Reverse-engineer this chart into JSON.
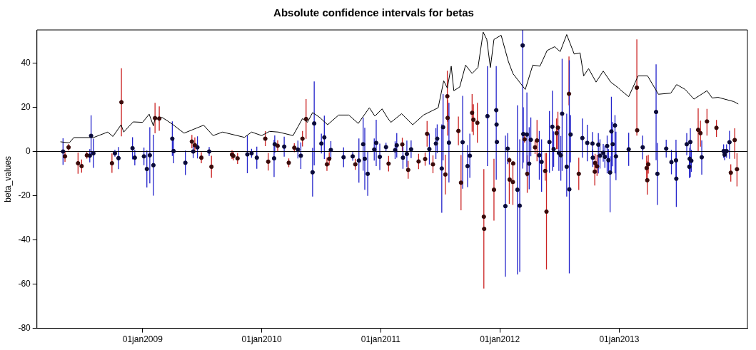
{
  "chart_data": {
    "type": "scatter",
    "title": "Absolute confidence intervals for betas",
    "ylabel": "beta_values",
    "xlim": [
      "2008-02-12",
      "2014-01-29"
    ],
    "ylim": [
      -80,
      55
    ],
    "xticks": [
      {
        "value": "2009-01-01",
        "label": "01jan2009"
      },
      {
        "value": "2010-01-01",
        "label": "01jan2010"
      },
      {
        "value": "2011-01-01",
        "label": "01jan2011"
      },
      {
        "value": "2012-01-01",
        "label": "01jan2012"
      },
      {
        "value": "2013-01-01",
        "label": "01jan2013"
      }
    ],
    "yticks": [
      -80,
      -60,
      -40,
      -20,
      0,
      20,
      40
    ],
    "grid": false,
    "legend": false,
    "ref_lines": [
      {
        "axis": "y",
        "value": 0,
        "color": "#000000"
      }
    ],
    "series": [
      {
        "type": "line",
        "color": "#000000",
        "x": [
          "2008-04-24",
          "2008-05-21",
          "2008-06-04",
          "2008-08-03",
          "2008-09-16",
          "2008-10-02",
          "2008-10-27",
          "2008-11-04",
          "2008-12-03",
          "2009-01-01",
          "2009-01-21",
          "2009-02-03",
          "2009-02-08",
          "2009-03-02",
          "2009-03-30",
          "2009-05-08",
          "2009-07-07",
          "2009-08-05",
          "2009-09-03",
          "2009-11-09",
          "2009-12-01",
          "2010-01-01",
          "2010-01-25",
          "2010-02-21",
          "2010-04-07",
          "2010-05-06",
          "2010-05-21",
          "2010-06-06",
          "2010-06-28",
          "2010-07-22",
          "2010-08-25",
          "2010-09-25",
          "2010-10-24",
          "2010-11-27",
          "2010-12-14",
          "2011-01-05",
          "2011-01-21",
          "2011-02-01",
          "2011-03-06",
          "2011-04-09",
          "2011-05-12",
          "2011-06-26",
          "2011-07-13",
          "2011-07-24",
          "2011-08-05",
          "2011-08-13",
          "2011-08-31",
          "2011-09-18",
          "2011-10-08",
          "2011-10-26",
          "2011-11-11",
          "2011-11-22",
          "2011-12-03",
          "2011-12-14",
          "2012-01-05",
          "2012-01-27",
          "2012-02-10",
          "2012-03-04",
          "2012-03-19",
          "2012-04-11",
          "2012-05-03",
          "2012-05-25",
          "2012-06-17",
          "2012-07-04",
          "2012-07-24",
          "2012-08-16",
          "2012-09-03",
          "2012-09-14",
          "2012-09-29",
          "2012-10-22",
          "2012-11-13",
          "2012-12-06",
          "2012-12-30",
          "2013-01-03",
          "2013-01-30",
          "2013-02-28",
          "2013-03-29",
          "2013-05-01",
          "2013-06-08",
          "2013-06-26",
          "2013-07-22",
          "2013-08-18",
          "2013-09-27",
          "2013-10-13",
          "2013-10-31",
          "2013-12-18",
          "2014-01-01"
        ],
        "values": [
          4.4,
          3.9,
          6.3,
          6.3,
          8.8,
          6.8,
          12.1,
          8.8,
          13.4,
          13.2,
          16.9,
          11.6,
          14.9,
          15.4,
          12.7,
          8.3,
          11.9,
          7.2,
          8.8,
          6.4,
          8.8,
          7.2,
          9.1,
          8.8,
          7.2,
          14.9,
          13.2,
          17.6,
          15.4,
          12.1,
          16.5,
          16.5,
          12.7,
          19.8,
          16.0,
          19.3,
          15.4,
          13.2,
          17.1,
          12.1,
          16.5,
          19.8,
          32.0,
          28.7,
          38.6,
          27.5,
          29.2,
          39.1,
          35.3,
          38.0,
          54,
          50.7,
          38.0,
          50.7,
          52.6,
          40.8,
          35.3,
          30.9,
          28.1,
          39.1,
          38.6,
          45.7,
          47.4,
          45.2,
          52.9,
          44.1,
          44.6,
          34.2,
          37.5,
          31.4,
          36.4,
          31.4,
          28.7,
          28.1,
          24.8,
          34.2,
          34.2,
          25.9,
          26.4,
          30.3,
          28.1,
          23.7,
          27.5,
          24.2,
          24.5,
          22.6,
          21.5
        ]
      },
      {
        "color": "#3a0a0a",
        "marker": "circle",
        "x": [
          "2008-05-08",
          "2008-05-19",
          "2008-06-17",
          "2008-06-28",
          "2008-07-14",
          "2008-09-29",
          "2008-10-28",
          "2009-02-08",
          "2009-02-21",
          "2009-06-01",
          "2009-06-10",
          "2009-06-30",
          "2009-07-31",
          "2009-10-02",
          "2009-10-06",
          "2009-10-19",
          "2010-01-12",
          "2010-01-21",
          "2010-02-19",
          "2010-03-25",
          "2010-04-11",
          "2010-05-06",
          "2010-05-17",
          "2010-07-20",
          "2010-07-27",
          "2010-10-15",
          "2011-01-25",
          "2011-03-08",
          "2011-03-26",
          "2011-04-27",
          "2011-05-17",
          "2011-05-23",
          "2011-06-10",
          "2011-07-18",
          "2011-07-24",
          "2011-07-25",
          "2011-08-27",
          "2011-09-04",
          "2011-10-08",
          "2011-10-12",
          "2011-10-24",
          "2011-11-13",
          "2011-11-14",
          "2011-12-14",
          "2012-01-30",
          "2012-01-31",
          "2012-02-10",
          "2012-02-11",
          "2012-03-17",
          "2012-03-25",
          "2012-04-18",
          "2012-04-24",
          "2012-05-19",
          "2012-05-23",
          "2012-06-23",
          "2012-06-27",
          "2012-07-31",
          "2012-08-30",
          "2012-10-18",
          "2012-10-19",
          "2012-10-25",
          "2013-02-24",
          "2013-02-25",
          "2013-03-26",
          "2013-03-28",
          "2013-03-31",
          "2013-08-31",
          "2013-09-07",
          "2013-09-27",
          "2013-10-26",
          "2013-12-09",
          "2013-12-21",
          "2013-12-28"
        ],
        "values": [
          -2.2,
          1.9,
          -5.3,
          -6.6,
          -1.7,
          -5.3,
          22.3,
          15.1,
          14.9,
          4.5,
          2.9,
          -2.8,
          -6.9,
          -1.4,
          -2.0,
          -3.1,
          5.8,
          -4.6,
          2.6,
          -5.1,
          1.7,
          5.8,
          14.7,
          -5.8,
          -3.3,
          -5.8,
          -5.5,
          3.2,
          -8.3,
          -4.5,
          -3.4,
          8.0,
          -5.8,
          -10.4,
          25.0,
          15.2,
          9.3,
          -14.1,
          17.5,
          14.4,
          13.0,
          -29.5,
          -35.0,
          -17.3,
          -3.9,
          -12.7,
          -13.8,
          -5.4,
          5.5,
          -10.1,
          1.9,
          5.0,
          -8.8,
          -27.2,
          8.3,
          10.8,
          26.1,
          -10.1,
          -9.1,
          -5.2,
          -6.7,
          28.9,
          9.6,
          -7.5,
          -13.0,
          -5.8,
          9.8,
          8.3,
          13.6,
          10.7,
          -9.6,
          5.2,
          -8.0
        ],
        "errors": [
          2.5,
          1.5,
          4.8,
          3,
          1.5,
          4.4,
          15.4,
          6.9,
          5.5,
          3,
          3.5,
          2.5,
          5,
          2,
          2,
          2.5,
          3.4,
          4,
          2.5,
          2,
          2,
          3.5,
          9,
          3,
          3,
          2.5,
          3.5,
          3,
          4,
          3.5,
          3,
          5.8,
          4,
          9,
          11.5,
          8,
          6.5,
          12.5,
          8.5,
          7,
          9,
          [
            -62,
            -8
          ],
          null,
          14,
          [
            -23.7,
            -2.8
          ],
          null,
          [
            -24.2,
            -4.4
          ],
          null,
          1.5,
          [
            -18.7,
            -1.7
          ],
          3,
          [
            -4.4,
            14.3
          ],
          [
            -13.2,
            -0.6
          ],
          [
            -53.4,
            -0.6
          ],
          [
            1.1,
            14.9
          ],
          [
            1.1,
            18
          ],
          [
            20.9,
            43.0
          ],
          [
            -17.4,
            -2.8
          ],
          [
            -15.4,
            -4.4
          ],
          [
            -10,
            -1
          ],
          [
            -11,
            -1.5
          ],
          [
            7.2,
            50.7
          ],
          null,
          [
            -13.2,
            -1.9
          ],
          [
            -19.5,
            -4.4
          ],
          [
            -10,
            -1.5
          ],
          [
            0,
            19.5
          ],
          [
            2.2,
            14
          ],
          [
            7.2,
            19.3
          ],
          [
            6.6,
            14.3
          ],
          [
            -13.6,
            -5.8
          ],
          [
            -3.3,
            10.5
          ],
          [
            -15.8,
            -0.8
          ]
        ]
      },
      {
        "color": "#0a0a3a",
        "marker": "circle",
        "x": [
          "2008-05-02",
          "2008-07-23",
          "2008-07-27",
          "2008-08-03",
          "2008-10-08",
          "2008-10-19",
          "2008-12-01",
          "2008-12-08",
          "2009-01-05",
          "2009-01-14",
          "2009-01-23",
          "2009-02-03",
          "2009-04-02",
          "2009-04-06",
          "2009-05-12",
          "2009-06-05",
          "2009-06-18",
          "2009-07-24",
          "2009-11-18",
          "2009-12-01",
          "2009-12-17",
          "2010-02-08",
          "2010-02-10",
          "2010-03-11",
          "2010-04-22",
          "2010-05-01",
          "2010-06-06",
          "2010-06-11",
          "2010-07-03",
          "2010-07-12",
          "2010-08-01",
          "2010-09-09",
          "2010-10-07",
          "2010-10-26",
          "2010-11-08",
          "2010-11-13",
          "2010-11-22",
          "2010-12-12",
          "2010-12-18",
          "2010-12-29",
          "2011-01-17",
          "2011-02-14",
          "2011-02-19",
          "2011-03-10",
          "2011-03-22",
          "2011-04-04",
          "2011-05-30",
          "2011-06-19",
          "2011-06-23",
          "2011-07-07",
          "2011-07-11",
          "2011-07-29",
          "2011-09-09",
          "2011-09-24",
          "2011-10-01",
          "2011-11-24",
          "2011-12-21",
          "2011-12-22",
          "2011-12-23",
          "2012-01-18",
          "2012-01-25",
          "2012-02-24",
          "2012-03-02",
          "2012-03-11",
          "2012-03-13",
          "2012-03-24",
          "2012-03-31",
          "2012-04-05",
          "2012-05-01",
          "2012-05-08",
          "2012-06-01",
          "2012-06-10",
          "2012-06-14",
          "2012-06-30",
          "2012-07-06",
          "2012-07-10",
          "2012-07-24",
          "2012-08-01",
          "2012-08-05",
          "2012-09-10",
          "2012-09-25",
          "2012-10-11",
          "2012-10-12",
          "2012-10-29",
          "2012-11-03",
          "2012-11-13",
          "2012-11-18",
          "2012-11-25",
          "2012-11-29",
          "2012-12-04",
          "2012-12-08",
          "2012-12-12",
          "2012-12-19",
          "2012-12-22",
          "2013-01-30",
          "2013-03-14",
          "2013-04-24",
          "2013-04-28",
          "2013-05-25",
          "2013-06-10",
          "2013-06-24",
          "2013-06-25",
          "2013-07-27",
          "2013-08-04",
          "2013-08-05",
          "2013-08-07",
          "2013-08-10",
          "2013-09-11",
          "2013-11-17",
          "2013-11-20",
          "2013-11-26",
          "2013-12-05"
        ],
        "values": [
          0,
          -1.9,
          7.1,
          -0.8,
          -0.8,
          -3.0,
          1.5,
          -2.8,
          -2.2,
          -7.9,
          -1.7,
          -6.2,
          5.8,
          0.2,
          -5.1,
          0,
          1.9,
          0,
          -1.3,
          -0.8,
          -2.8,
          -3.1,
          3.3,
          2.2,
          0.9,
          -1.9,
          -9.4,
          12.7,
          3.6,
          6.4,
          0.7,
          -2.6,
          -2.2,
          -4.1,
          3.3,
          -3.3,
          -10.1,
          0.9,
          3.9,
          -2.4,
          2.0,
          0.6,
          2.8,
          -2.8,
          -1.1,
          1.0,
          1.1,
          3.6,
          5.8,
          -7.7,
          11.0,
          4.0,
          4.2,
          -6.6,
          -1.9,
          16.0,
          18.7,
          12.2,
          4.3,
          -24.7,
          1.3,
          -17.3,
          -24.5,
          48.0,
          7.9,
          7.7,
          -5.5,
          5.3,
          -1.7,
          -4.7,
          4.3,
          11.2,
          1.1,
          -0.6,
          -1.7,
          17.1,
          -6.9,
          -17.1,
          7.7,
          6.1,
          3.9,
          3.6,
          -2.8,
          3.1,
          -1.9,
          -0.6,
          -2.4,
          2.5,
          -3.9,
          -9.5,
          9.1,
          3.3,
          11.8,
          -2.2,
          1.0,
          1.9,
          17.9,
          -10.1,
          1.3,
          -4.8,
          -4.0,
          -12.3,
          3.3,
          -6.9,
          -3.3,
          4.3,
          -4.2,
          -2.6,
          0.2,
          -1.4,
          0.2,
          4.2
        ],
        "errors": [
          6,
          3,
          9.3,
          6.6,
          1.5,
          5,
          5,
          3.5,
          4,
          8.4,
          12.7,
          13.8,
          7.8,
          5.5,
          5.5,
          3,
          5,
          2,
          8.5,
          2,
          5,
          8.4,
          4,
          4.5,
          4,
          6,
          11,
          19,
          4.5,
          9.8,
          4,
          4.5,
          2,
          10,
          12,
          14,
          10,
          5,
          10.5,
          6,
          2,
          4,
          5.5,
          5,
          6,
          4,
          7,
          7,
          6.5,
          20,
          15,
          18,
          21,
          9.5,
          10,
          [
            -6.6,
            38.6
          ],
          [
            -12.7,
            38.6
          ],
          null,
          null,
          [
            -56.7,
            7.2
          ],
          7,
          [
            -55.6,
            20.9
          ],
          [
            -54.5,
            5.5
          ],
          [
            -7.7,
            55
          ],
          [
            -5,
            20
          ],
          19,
          [
            -17.1,
            11
          ],
          [
            -2.2,
            15.4
          ],
          11,
          [
            -18.2,
            5.5
          ],
          14,
          [
            -8.8,
            27.5
          ],
          8,
          [
            -8.8,
            11
          ],
          [
            -13.2,
            7
          ],
          [
            -8.8,
            41.9
          ],
          [
            -20.4,
            17.1
          ],
          [
            -55.1,
            41.3
          ],
          [
            -4.9,
            16.5
          ],
          [
            -2.8,
            14.9
          ],
          [
            -4.4,
            12.1
          ],
          [
            -3.3,
            8.8
          ],
          [
            -7,
            1
          ],
          [
            -9.9,
            8.3
          ],
          [
            -7.7,
            5.5
          ],
          4,
          5,
          [
            -9.9,
            7.2
          ],
          5,
          [
            -27.5,
            -2.2
          ],
          [
            -9.9,
            24.8
          ],
          10,
          [
            -9.9,
            16.5
          ],
          [
            -13,
            9
          ],
          7.5,
          [
            -3.5,
            7.2
          ],
          [
            -3.9,
            39.4
          ],
          [
            -24.2,
            3.9
          ],
          4,
          5.5,
          [
            -12,
            5.3
          ],
          [
            -25.1,
            0.2
          ],
          5,
          [
            -12,
            -2
          ],
          5,
          [
            -11.6,
            10.5
          ],
          5,
          [
            -10.5,
            5
          ],
          3,
          2.5,
          3,
          [
            -3.3,
            9.4
          ]
        ]
      }
    ]
  }
}
